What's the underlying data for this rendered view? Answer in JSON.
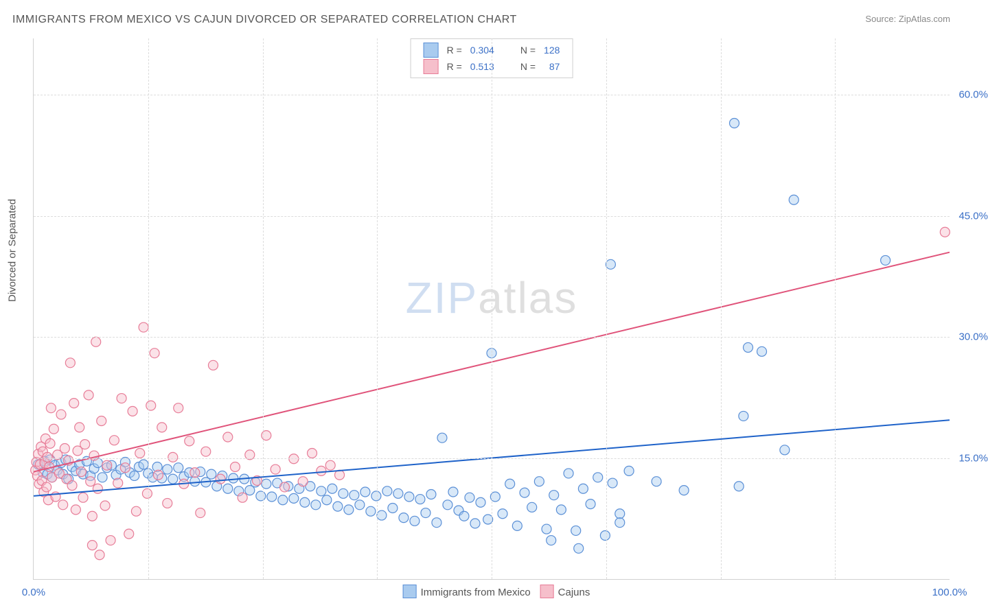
{
  "title": "IMMIGRANTS FROM MEXICO VS CAJUN DIVORCED OR SEPARATED CORRELATION CHART",
  "source_label": "Source:",
  "source_name": "ZipAtlas.com",
  "ylabel": "Divorced or Separated",
  "watermark_left": "ZIP",
  "watermark_right": "atlas",
  "chart": {
    "type": "scatter",
    "xlim": [
      0,
      100
    ],
    "ylim": [
      0,
      67
    ],
    "x_ticks": [
      {
        "pos": 0,
        "label": "0.0%"
      },
      {
        "pos": 100,
        "label": "100.0%"
      }
    ],
    "y_ticks": [
      {
        "pos": 15,
        "label": "15.0%"
      },
      {
        "pos": 30,
        "label": "30.0%"
      },
      {
        "pos": 45,
        "label": "45.0%"
      },
      {
        "pos": 60,
        "label": "60.0%"
      }
    ],
    "x_grid": [
      12.5,
      25,
      37.5,
      50,
      62.5,
      75,
      87.5
    ],
    "background_color": "#ffffff",
    "grid_color": "#dcdcdc",
    "axis_color": "#d0d0d0",
    "tick_label_color": "#3b70c7",
    "marker_radius": 7,
    "marker_fill_opacity": 0.45,
    "marker_stroke_width": 1.2,
    "trend_line_width": 2
  },
  "series": [
    {
      "key": "mexico",
      "label": "Immigrants from Mexico",
      "fill": "#a9cbef",
      "stroke": "#5a8fd6",
      "line_color": "#1e62c9",
      "r_label": "R =",
      "r_value": "0.304",
      "n_label": "N =",
      "n_value": "128",
      "trend": {
        "x1": 0,
        "y1": 10.3,
        "x2": 100,
        "y2": 19.7
      },
      "points": [
        [
          0.5,
          14.2
        ],
        [
          1,
          13.2
        ],
        [
          1.2,
          14.6
        ],
        [
          1.5,
          13
        ],
        [
          1.8,
          14.8
        ],
        [
          2,
          12.6
        ],
        [
          2.3,
          14.1
        ],
        [
          2.6,
          13.5
        ],
        [
          3,
          14.4
        ],
        [
          3.2,
          13
        ],
        [
          3.5,
          14.8
        ],
        [
          3.8,
          12.4
        ],
        [
          4.2,
          13.9
        ],
        [
          4.6,
          13.4
        ],
        [
          5,
          14.2
        ],
        [
          5.4,
          13
        ],
        [
          5.8,
          14.6
        ],
        [
          6.2,
          12.8
        ],
        [
          6.6,
          13.7
        ],
        [
          7,
          14.4
        ],
        [
          7.5,
          12.6
        ],
        [
          8,
          13.8
        ],
        [
          8.5,
          14.1
        ],
        [
          9,
          12.9
        ],
        [
          9.5,
          13.6
        ],
        [
          10,
          14.5
        ],
        [
          10.5,
          13.2
        ],
        [
          11,
          12.8
        ],
        [
          11.5,
          13.9
        ],
        [
          12,
          14.2
        ],
        [
          12.5,
          13.1
        ],
        [
          13,
          12.6
        ],
        [
          13.5,
          13.9
        ],
        [
          14,
          12.5
        ],
        [
          14.6,
          13.6
        ],
        [
          15.2,
          12.4
        ],
        [
          15.8,
          13.8
        ],
        [
          16.4,
          12.7
        ],
        [
          17,
          13.2
        ],
        [
          17.6,
          12.1
        ],
        [
          18.2,
          13.3
        ],
        [
          18.8,
          12
        ],
        [
          19.4,
          13
        ],
        [
          20,
          11.5
        ],
        [
          20.6,
          12.8
        ],
        [
          21.2,
          11.2
        ],
        [
          21.8,
          12.5
        ],
        [
          22.4,
          10.9
        ],
        [
          23,
          12.4
        ],
        [
          23.6,
          11
        ],
        [
          24.2,
          12
        ],
        [
          24.8,
          10.3
        ],
        [
          25.4,
          11.8
        ],
        [
          26,
          10.2
        ],
        [
          26.6,
          11.9
        ],
        [
          27.2,
          9.8
        ],
        [
          27.8,
          11.5
        ],
        [
          28.4,
          10
        ],
        [
          29,
          11.2
        ],
        [
          29.6,
          9.5
        ],
        [
          30.2,
          11.5
        ],
        [
          30.8,
          9.2
        ],
        [
          31.4,
          10.9
        ],
        [
          32,
          9.8
        ],
        [
          32.6,
          11.2
        ],
        [
          33.2,
          9
        ],
        [
          33.8,
          10.6
        ],
        [
          34.4,
          8.6
        ],
        [
          35,
          10.4
        ],
        [
          35.6,
          9.2
        ],
        [
          36.2,
          10.8
        ],
        [
          36.8,
          8.4
        ],
        [
          37.4,
          10.3
        ],
        [
          38,
          7.9
        ],
        [
          38.6,
          10.9
        ],
        [
          39.2,
          8.8
        ],
        [
          39.8,
          10.6
        ],
        [
          40.4,
          7.6
        ],
        [
          41,
          10.2
        ],
        [
          41.6,
          7.2
        ],
        [
          42.2,
          9.9
        ],
        [
          42.8,
          8.2
        ],
        [
          43.4,
          10.5
        ],
        [
          44,
          7
        ],
        [
          44.6,
          17.5
        ],
        [
          45.2,
          9.2
        ],
        [
          45.8,
          10.8
        ],
        [
          46.4,
          8.5
        ],
        [
          47,
          7.8
        ],
        [
          47.6,
          10.1
        ],
        [
          48.2,
          6.9
        ],
        [
          48.8,
          9.5
        ],
        [
          49.6,
          7.4
        ],
        [
          50.4,
          10.2
        ],
        [
          51.2,
          8.1
        ],
        [
          52,
          11.8
        ],
        [
          52.8,
          6.6
        ],
        [
          53.6,
          10.7
        ],
        [
          54.4,
          8.9
        ],
        [
          55.2,
          12.1
        ],
        [
          56,
          6.2
        ],
        [
          56.8,
          10.4
        ],
        [
          57.6,
          8.6
        ],
        [
          58.4,
          13.1
        ],
        [
          59.2,
          6
        ],
        [
          60,
          11.2
        ],
        [
          60.8,
          9.3
        ],
        [
          61.6,
          12.6
        ],
        [
          62.4,
          5.4
        ],
        [
          63.2,
          11.9
        ],
        [
          64,
          8.1
        ],
        [
          65,
          13.4
        ],
        [
          50,
          28
        ],
        [
          63,
          39
        ],
        [
          76.5,
          56.5
        ],
        [
          83,
          47
        ],
        [
          78,
          28.7
        ],
        [
          79.5,
          28.2
        ],
        [
          93,
          39.5
        ],
        [
          77.5,
          20.2
        ],
        [
          82,
          16
        ],
        [
          77,
          11.5
        ],
        [
          71,
          11
        ],
        [
          68,
          12.1
        ],
        [
          64,
          7
        ],
        [
          59.5,
          3.8
        ],
        [
          56.5,
          4.8
        ]
      ]
    },
    {
      "key": "cajun",
      "label": "Cajuns",
      "fill": "#f6bfcb",
      "stroke": "#e77c97",
      "line_color": "#e0537a",
      "r_label": "R =",
      "r_value": "0.513",
      "n_label": "N =",
      "n_value": "87",
      "trend": {
        "x1": 0,
        "y1": 13.3,
        "x2": 100,
        "y2": 40.5
      },
      "points": [
        [
          0.2,
          13.5
        ],
        [
          0.3,
          14.5
        ],
        [
          0.4,
          12.8
        ],
        [
          0.5,
          15.5
        ],
        [
          0.6,
          11.8
        ],
        [
          0.7,
          14.2
        ],
        [
          0.8,
          16.4
        ],
        [
          0.9,
          12.2
        ],
        [
          1,
          15.8
        ],
        [
          1.1,
          10.8
        ],
        [
          1.2,
          14.4
        ],
        [
          1.3,
          17.4
        ],
        [
          1.4,
          11.4
        ],
        [
          1.5,
          15.1
        ],
        [
          1.6,
          9.8
        ],
        [
          1.7,
          13.9
        ],
        [
          1.8,
          16.8
        ],
        [
          1.9,
          21.2
        ],
        [
          2,
          12.6
        ],
        [
          2.2,
          18.6
        ],
        [
          2.4,
          10.2
        ],
        [
          2.6,
          15.4
        ],
        [
          2.8,
          13.1
        ],
        [
          3,
          20.4
        ],
        [
          3.2,
          9.2
        ],
        [
          3.4,
          16.2
        ],
        [
          3.6,
          12.4
        ],
        [
          3.8,
          14.7
        ],
        [
          4,
          26.8
        ],
        [
          4.2,
          11.6
        ],
        [
          4.4,
          21.8
        ],
        [
          4.6,
          8.6
        ],
        [
          4.8,
          15.9
        ],
        [
          5,
          18.8
        ],
        [
          5.2,
          13.3
        ],
        [
          5.4,
          10.1
        ],
        [
          5.6,
          16.7
        ],
        [
          6,
          22.8
        ],
        [
          6.2,
          12.1
        ],
        [
          6.4,
          7.8
        ],
        [
          6.6,
          15.3
        ],
        [
          6.8,
          29.4
        ],
        [
          7,
          11.2
        ],
        [
          7.4,
          19.6
        ],
        [
          7.8,
          9.1
        ],
        [
          8,
          14.1
        ],
        [
          8.4,
          4.8
        ],
        [
          8.8,
          17.2
        ],
        [
          9.2,
          11.9
        ],
        [
          9.6,
          22.4
        ],
        [
          10,
          13.8
        ],
        [
          10.4,
          5.6
        ],
        [
          10.8,
          20.8
        ],
        [
          11.2,
          8.4
        ],
        [
          11.6,
          15.6
        ],
        [
          12,
          31.2
        ],
        [
          12.4,
          10.6
        ],
        [
          12.8,
          21.5
        ],
        [
          13.2,
          28
        ],
        [
          13.6,
          12.9
        ],
        [
          14,
          18.8
        ],
        [
          14.6,
          9.4
        ],
        [
          15.2,
          15.1
        ],
        [
          15.8,
          21.2
        ],
        [
          16.4,
          11.8
        ],
        [
          17,
          17.1
        ],
        [
          17.6,
          13.2
        ],
        [
          18.2,
          8.2
        ],
        [
          18.8,
          15.8
        ],
        [
          19.6,
          26.5
        ],
        [
          20.4,
          12.4
        ],
        [
          21.2,
          17.6
        ],
        [
          22,
          13.9
        ],
        [
          22.8,
          10.1
        ],
        [
          23.6,
          15.4
        ],
        [
          24.4,
          12.2
        ],
        [
          25.4,
          17.8
        ],
        [
          26.4,
          13.6
        ],
        [
          27.4,
          11.4
        ],
        [
          28.4,
          14.9
        ],
        [
          29.4,
          12.1
        ],
        [
          30.4,
          15.6
        ],
        [
          31.4,
          13.4
        ],
        [
          32.4,
          14.1
        ],
        [
          33.4,
          12.9
        ],
        [
          6.4,
          4.2
        ],
        [
          7.2,
          3
        ],
        [
          99.5,
          43
        ]
      ]
    }
  ]
}
